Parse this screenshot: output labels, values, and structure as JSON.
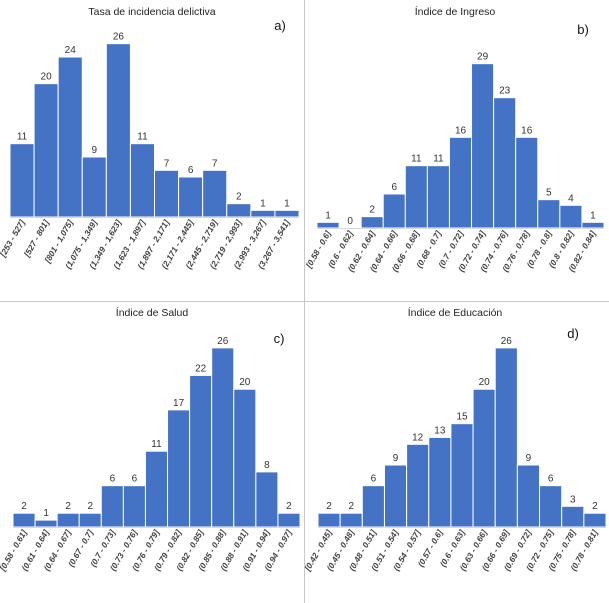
{
  "chart_data": [
    {
      "type": "bar",
      "title": "Tasa de incidencia delictiva",
      "panel_label": "a)",
      "categories": [
        "[253 - 527]",
        "[527 - 801]",
        "[801 - 1,075]",
        "(1,075 - 1,349]",
        "(1,349 - 1,623]",
        "(1,623 - 1,897]",
        "(1,897 - 2,171]",
        "(2,171 - 2,445]",
        "(2,445 - 2,719]",
        "(2,719 - 2,993]",
        "(2,993 - 3,267]",
        "(3,267 - 3,541]"
      ],
      "values": [
        11,
        20,
        24,
        9,
        26,
        11,
        7,
        6,
        7,
        2,
        1,
        1
      ],
      "ylim": [
        0,
        27
      ],
      "xlabel": "",
      "ylabel": "",
      "grid": false,
      "bar_color": "#4472c4"
    },
    {
      "type": "bar",
      "title": "Índice de Ingreso",
      "panel_label": "b)",
      "categories": [
        "[0.58 - 0.6]",
        "(0.6 - 0.62]",
        "(0.62 - 0.64]",
        "(0.64 - 0.66]",
        "(0.66 - 0.68]",
        "(0.68 - 0.7]",
        "(0.7 - 0.72]",
        "(0.72 - 0.74]",
        "(0.74 - 0.76]",
        "(0.76 - 0.78]",
        "(0.78 - 0.8]",
        "(0.8 - 0.82]",
        "(0.82 - 0.84]"
      ],
      "values": [
        1,
        0,
        2,
        6,
        11,
        11,
        16,
        29,
        23,
        16,
        5,
        4,
        1
      ],
      "ylim": [
        0,
        30
      ],
      "xlabel": "",
      "ylabel": "",
      "grid": false,
      "bar_color": "#4472c4"
    },
    {
      "type": "bar",
      "title": "Índice de Salud",
      "panel_label": "c)",
      "categories": [
        "[0.58 - 0.61]",
        "(0.61 - 0.64]",
        "(0.64 - 0.67]",
        "(0.67 - 0.7]",
        "(0.7 - 0.73]",
        "(0.73 - 0.76]",
        "(0.76 - 0.79]",
        "(0.79 - 0.82]",
        "(0.82 - 0.85]",
        "(0.85 - 0.88]",
        "(0.88 - 0.91]",
        "(0.91 - 0.94]",
        "(0.94 - 0.97]"
      ],
      "values": [
        2,
        1,
        2,
        2,
        6,
        6,
        11,
        17,
        22,
        26,
        20,
        8,
        2
      ],
      "ylim": [
        0,
        27
      ],
      "xlabel": "",
      "ylabel": "",
      "grid": false,
      "bar_color": "#4472c4"
    },
    {
      "type": "bar",
      "title": "Índice de Educación",
      "panel_label": "d)",
      "categories": [
        "[0.42 - 0.45]",
        "(0.45 - 0.48]",
        "(0.48 - 0.51]",
        "(0.51 - 0.54]",
        "(0.54 - 0.57]",
        "(0.57 - 0.6]",
        "(0.6 - 0.63]",
        "(0.63 - 0.66]",
        "(0.66 - 0.69]",
        "(0.69 - 0.72]",
        "(0.72 - 0.75]",
        "(0.75 - 0.78]",
        "(0.78 - 0.81]"
      ],
      "values": [
        2,
        2,
        6,
        9,
        12,
        13,
        15,
        20,
        26,
        9,
        6,
        3,
        2
      ],
      "ylim": [
        0,
        27
      ],
      "xlabel": "",
      "ylabel": "",
      "grid": false,
      "bar_color": "#4472c4"
    }
  ]
}
